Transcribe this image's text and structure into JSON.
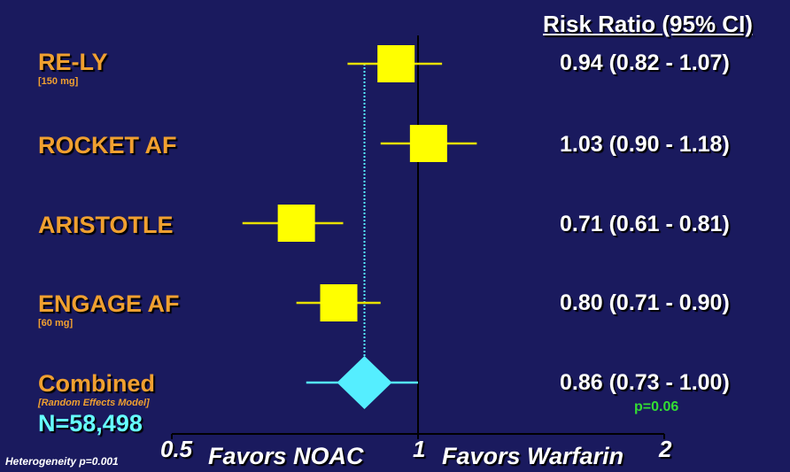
{
  "colors": {
    "background": "#1a1a5e",
    "study_label": "#f0a030",
    "box": "#ffff00",
    "ci_line": "#e8e000",
    "diamond": "#55eeff",
    "reference_line": "#000000",
    "p_value": "#33dd33",
    "n_label": "#66ffff"
  },
  "chart_data": {
    "type": "forest",
    "x_scale": "log",
    "xlim": [
      0.5,
      2
    ],
    "reference_value": 1,
    "x_ticks": [
      "0.5",
      "1",
      "2"
    ],
    "column_header": "Risk Ratio (95% CI)",
    "favors_left": "Favors NOAC",
    "favors_right": "Favors Warfarin",
    "studies": [
      {
        "name": "RE-LY",
        "subtitle": "[150 mg]",
        "rr": 0.94,
        "lo": 0.82,
        "hi": 1.07,
        "label": "0.94 (0.82 - 1.07)"
      },
      {
        "name": "ROCKET AF",
        "subtitle": "",
        "rr": 1.03,
        "lo": 0.9,
        "hi": 1.18,
        "label": "1.03 (0.90 - 1.18)"
      },
      {
        "name": "ARISTOTLE",
        "subtitle": "",
        "rr": 0.71,
        "lo": 0.61,
        "hi": 0.81,
        "label": "0.71 (0.61 - 0.81)"
      },
      {
        "name": "ENGAGE AF",
        "subtitle": "[60 mg]",
        "rr": 0.8,
        "lo": 0.71,
        "hi": 0.9,
        "label": "0.80 (0.71 - 0.90)"
      }
    ],
    "combined": {
      "name": "Combined",
      "subtitle": "[Random Effects Model]",
      "rr": 0.86,
      "lo": 0.73,
      "hi": 1.0,
      "label": "0.86 (0.73 - 1.00)",
      "p_value": "p=0.06"
    },
    "n_label": "N=58,498",
    "heterogeneity": "Heterogeneity p=0.001"
  }
}
